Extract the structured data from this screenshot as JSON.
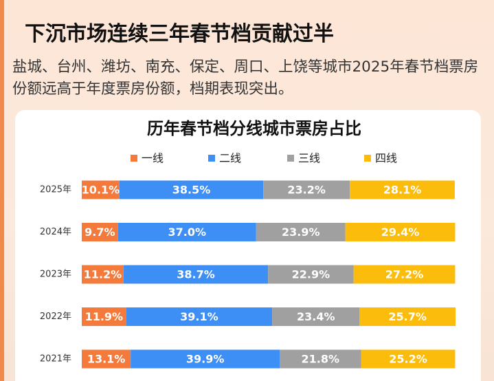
{
  "header": {
    "title": "下沉市场连续三年春节档贡献过半",
    "subtitle": "盐城、台州、潍坊、南充、保定、周口、上饶等城市2025年春节档票房份额远高于年度票房份额，档期表现突出。"
  },
  "chart_data": {
    "type": "stacked_bar_horizontal",
    "title": "历年春节档分线城市票房占比",
    "categories": [
      "2025年",
      "2024年",
      "2023年",
      "2022年",
      "2021年"
    ],
    "series": [
      {
        "name": "一线",
        "color": "#f47a3c",
        "values": [
          10.1,
          9.7,
          11.2,
          11.9,
          13.1
        ],
        "value_labels": [
          "10.1%",
          "9.7%",
          "11.2%",
          "11.9%",
          "13.1%"
        ]
      },
      {
        "name": "二线",
        "color": "#3d8ef5",
        "values": [
          38.5,
          37.0,
          38.7,
          39.1,
          39.9
        ],
        "value_labels": [
          "38.5%",
          "37.0%",
          "38.7%",
          "39.1%",
          "39.9%"
        ]
      },
      {
        "name": "三线",
        "color": "#a0a0a0",
        "values": [
          23.2,
          23.9,
          22.9,
          23.4,
          21.8
        ],
        "value_labels": [
          "23.2%",
          "23.9%",
          "22.9%",
          "23.4%",
          "21.8%"
        ]
      },
      {
        "name": "四线",
        "color": "#fbbc0c",
        "values": [
          28.1,
          29.4,
          27.2,
          25.7,
          25.2
        ],
        "value_labels": [
          "28.1%",
          "29.4%",
          "27.2%",
          "25.7%",
          "25.2%"
        ]
      }
    ]
  }
}
